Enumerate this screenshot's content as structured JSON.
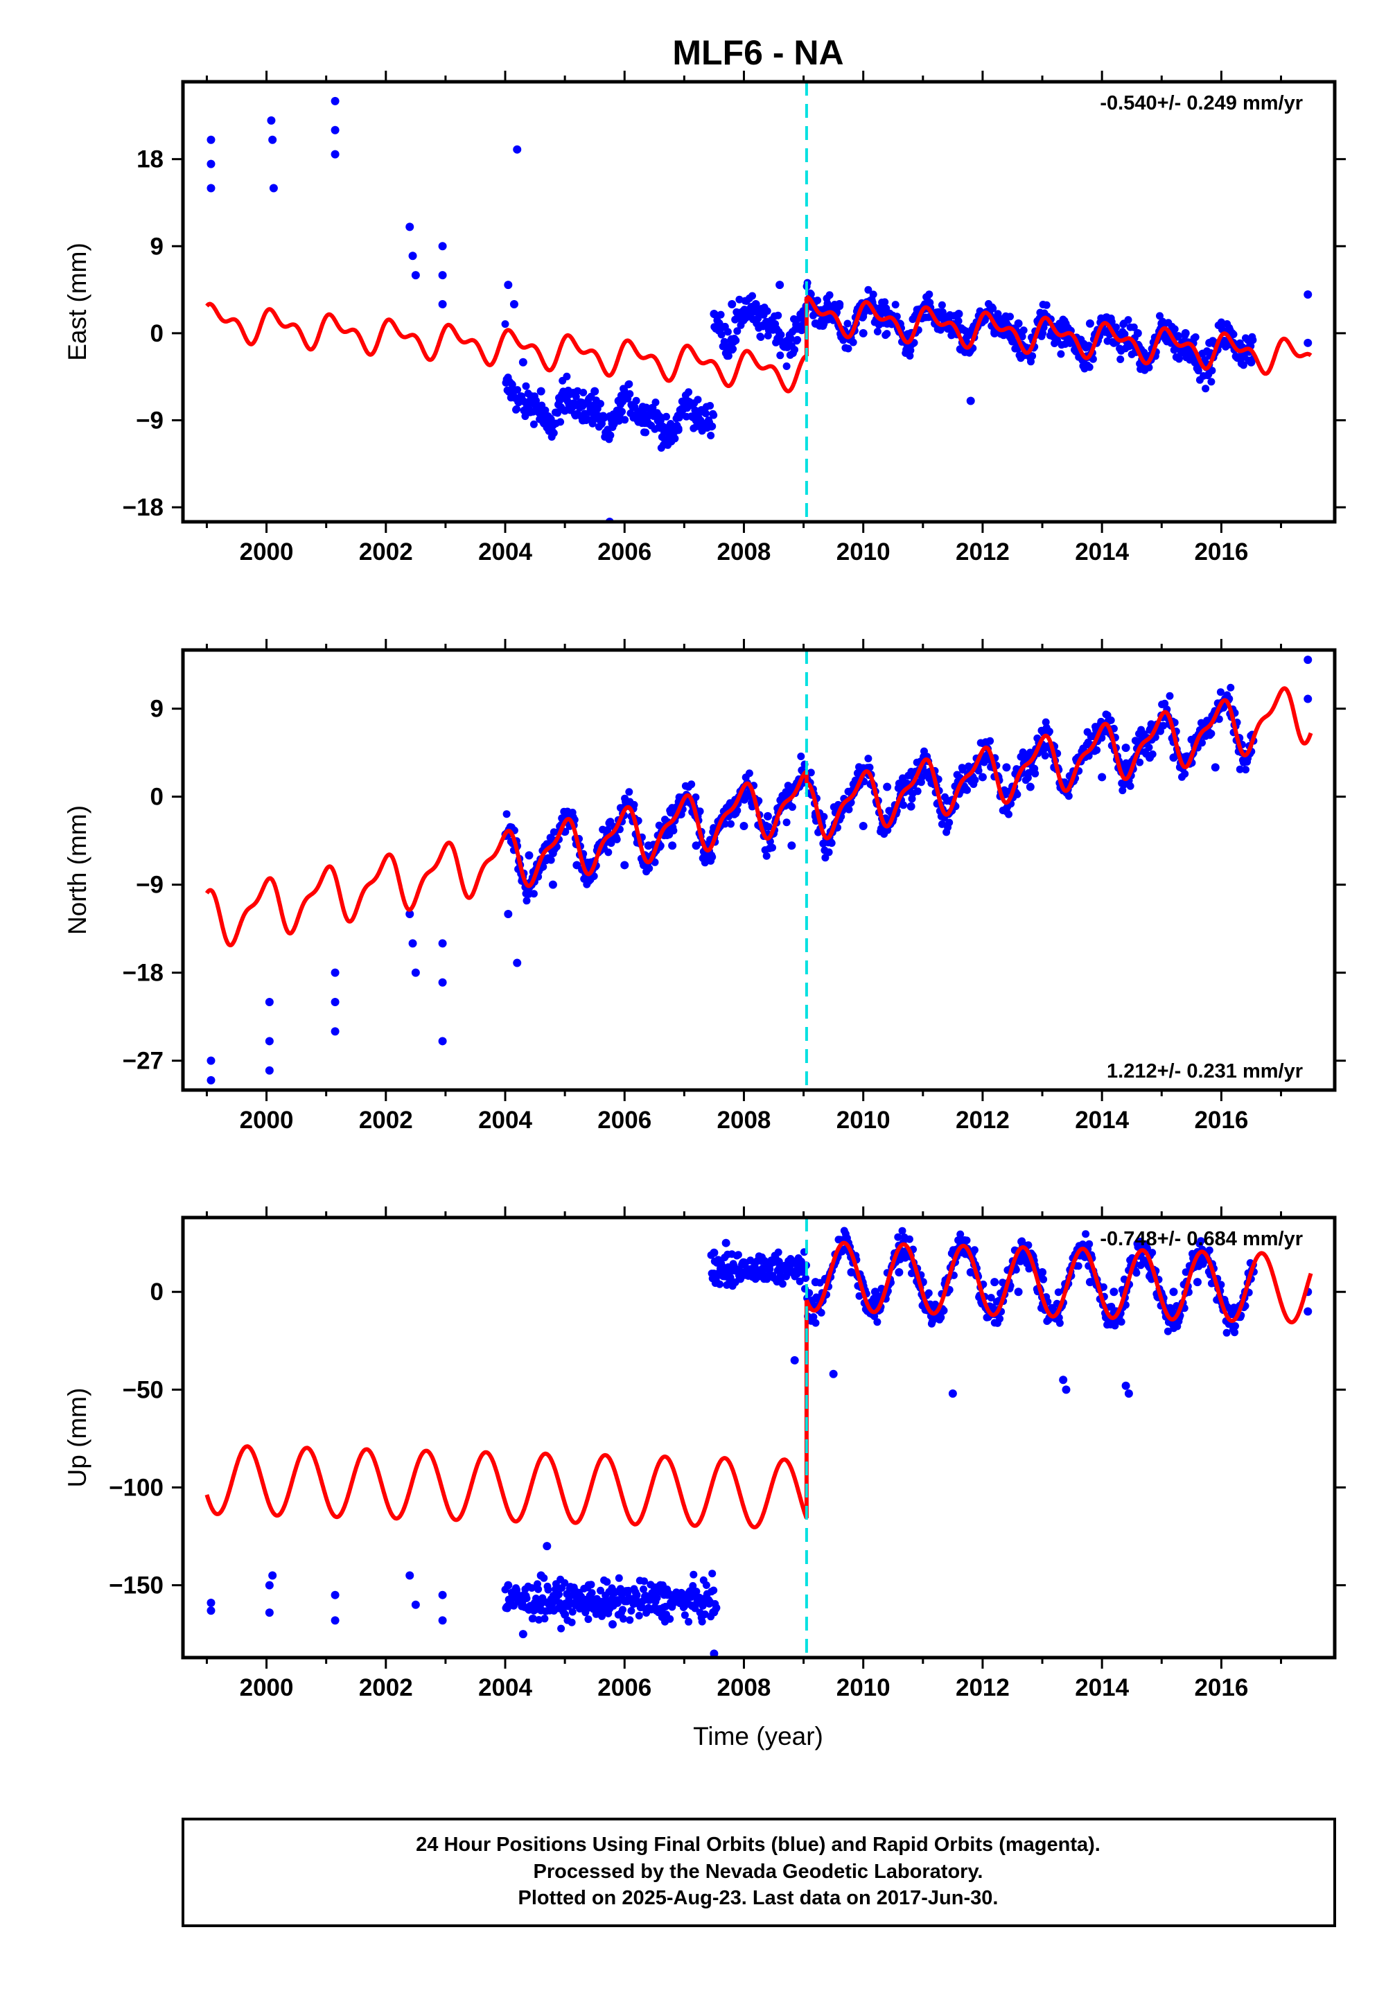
{
  "title": "MLF6 - NA",
  "xlabel": "Time (year)",
  "footer": {
    "line1": "24 Hour Positions Using Final Orbits (blue) and Rapid Orbits (magenta).",
    "line2": "Processed by the Nevada Geodetic Laboratory.",
    "line3": "Plotted on 2025-Aug-23. Last data on 2017-Jun-30."
  },
  "colors": {
    "final_orbits": "#0000ff",
    "model_fit": "#ff0000",
    "equipment_change": "#00e0e0"
  },
  "chart_data": [
    {
      "type": "scatter",
      "name": "east",
      "ylabel": "East (mm)",
      "rate_text": "-0.540+/- 0.249 mm/yr",
      "rate_position": "top-right",
      "xlim": [
        1998.6,
        2017.9
      ],
      "ylim": [
        -19.5,
        26
      ],
      "x_ticks": [
        2000,
        2002,
        2004,
        2006,
        2008,
        2010,
        2012,
        2014,
        2016
      ],
      "y_ticks": [
        -18,
        -9,
        0,
        9,
        18
      ],
      "step_epoch": 2009.05,
      "points": [
        [
          1999.07,
          20
        ],
        [
          1999.07,
          17.5
        ],
        [
          1999.07,
          15
        ],
        [
          2000.08,
          22
        ],
        [
          2000.1,
          20
        ],
        [
          2000.12,
          15
        ],
        [
          2001.15,
          24
        ],
        [
          2001.15,
          21
        ],
        [
          2001.15,
          18.5
        ],
        [
          2002.4,
          11
        ],
        [
          2002.45,
          8
        ],
        [
          2002.5,
          6
        ],
        [
          2002.95,
          9
        ],
        [
          2002.95,
          6
        ],
        [
          2002.95,
          3
        ],
        [
          2004.2,
          19
        ],
        [
          2004.05,
          5
        ],
        [
          2004.15,
          3
        ],
        [
          2004.3,
          -3
        ],
        [
          2004.6,
          -6
        ],
        [
          2005.0,
          -8
        ],
        [
          2005.3,
          -9
        ],
        [
          2005.5,
          -6
        ],
        [
          2005.75,
          -19.5
        ],
        [
          2005.9,
          -7
        ],
        [
          2006.3,
          -8
        ],
        [
          2006.6,
          -9
        ],
        [
          2006.9,
          -10
        ],
        [
          2007.2,
          -9
        ],
        [
          2007.5,
          2
        ],
        [
          2007.8,
          3
        ],
        [
          2008.2,
          3
        ],
        [
          2008.6,
          5
        ],
        [
          2009.2,
          1
        ],
        [
          2009.6,
          3
        ],
        [
          2010.0,
          0
        ],
        [
          2010.4,
          1
        ],
        [
          2010.8,
          0
        ],
        [
          2011.2,
          1
        ],
        [
          2011.6,
          2
        ],
        [
          2011.8,
          -7
        ],
        [
          2012.2,
          0
        ],
        [
          2012.6,
          1
        ],
        [
          2013.0,
          0
        ],
        [
          2013.4,
          0
        ],
        [
          2013.8,
          1
        ],
        [
          2014.2,
          -1
        ],
        [
          2014.6,
          0
        ],
        [
          2015.0,
          1
        ],
        [
          2015.4,
          0
        ],
        [
          2015.8,
          -1
        ],
        [
          2016.2,
          -1
        ],
        [
          2016.5,
          -3
        ],
        [
          2017.45,
          4
        ],
        [
          2017.45,
          -1
        ]
      ],
      "model": {
        "segments": [
          {
            "from": 1999.0,
            "to": 2009.05,
            "base_at_start": 1.3,
            "slope": -0.54,
            "amp_annual": 1.3,
            "amp_semiannual": 0.9,
            "phase_annual": 0.5,
            "phase_semiannual": 1.4
          },
          {
            "from": 2009.05,
            "to": 2017.5,
            "base_at_start": 2.0,
            "slope": -0.54,
            "amp_annual": 1.3,
            "amp_semiannual": 0.9,
            "phase_annual": 0.5,
            "phase_semiannual": 1.4
          }
        ]
      }
    },
    {
      "type": "scatter",
      "name": "north",
      "ylabel": "North (mm)",
      "rate_text": "1.212+/- 0.231 mm/yr",
      "rate_position": "bottom-right",
      "xlim": [
        1998.6,
        2017.9
      ],
      "ylim": [
        -30,
        15
      ],
      "x_ticks": [
        2000,
        2002,
        2004,
        2006,
        2008,
        2010,
        2012,
        2014,
        2016
      ],
      "y_ticks": [
        -27,
        -18,
        -9,
        0,
        9
      ],
      "step_epoch": 2009.05,
      "points": [
        [
          1999.07,
          -27
        ],
        [
          1999.07,
          -29
        ],
        [
          2000.05,
          -21
        ],
        [
          2000.05,
          -25
        ],
        [
          2000.05,
          -28
        ],
        [
          2001.15,
          -18
        ],
        [
          2001.15,
          -21
        ],
        [
          2001.15,
          -24
        ],
        [
          2002.4,
          -12
        ],
        [
          2002.45,
          -15
        ],
        [
          2002.5,
          -18
        ],
        [
          2002.95,
          -15
        ],
        [
          2002.95,
          -19
        ],
        [
          2002.95,
          -25
        ],
        [
          2004.05,
          -12
        ],
        [
          2004.2,
          -17
        ],
        [
          2004.4,
          -6
        ],
        [
          2004.8,
          -9
        ],
        [
          2005.2,
          -7
        ],
        [
          2005.6,
          -5
        ],
        [
          2006.0,
          -7
        ],
        [
          2006.4,
          -5
        ],
        [
          2006.8,
          -5
        ],
        [
          2007.2,
          -5
        ],
        [
          2007.6,
          -3
        ],
        [
          2008.0,
          -3
        ],
        [
          2008.4,
          -2
        ],
        [
          2008.8,
          -5
        ],
        [
          2009.2,
          -2
        ],
        [
          2009.6,
          -1
        ],
        [
          2010.0,
          -3
        ],
        [
          2010.4,
          1
        ],
        [
          2010.8,
          -1
        ],
        [
          2011.2,
          2
        ],
        [
          2011.6,
          1
        ],
        [
          2012.0,
          2
        ],
        [
          2012.4,
          3
        ],
        [
          2012.8,
          1
        ],
        [
          2013.2,
          3
        ],
        [
          2013.6,
          4
        ],
        [
          2014.0,
          2
        ],
        [
          2014.4,
          5
        ],
        [
          2014.8,
          4
        ],
        [
          2015.2,
          4
        ],
        [
          2015.6,
          6
        ],
        [
          2015.9,
          3
        ],
        [
          2016.3,
          6
        ],
        [
          2017.45,
          14
        ],
        [
          2017.45,
          10
        ]
      ],
      "model": {
        "segments": [
          {
            "from": 1999.0,
            "to": 2009.05,
            "base_at_start": -12.5,
            "slope": 1.212,
            "amp_annual": 2.5,
            "amp_semiannual": 1.0,
            "phase_annual": 1.8,
            "phase_semiannual": 0.2
          },
          {
            "from": 2009.05,
            "to": 2017.5,
            "base_at_start": -1.5,
            "slope": 1.212,
            "amp_annual": 2.5,
            "amp_semiannual": 1.0,
            "phase_annual": 1.8,
            "phase_semiannual": 0.2
          }
        ]
      }
    },
    {
      "type": "scatter",
      "name": "up",
      "ylabel": "Up (mm)",
      "rate_text": "-0.748+/- 0.684 mm/yr",
      "rate_position": "top-right",
      "xlim": [
        1998.6,
        2017.9
      ],
      "ylim": [
        -187,
        38
      ],
      "x_ticks": [
        2000,
        2002,
        2004,
        2006,
        2008,
        2010,
        2012,
        2014,
        2016
      ],
      "y_ticks": [
        -150,
        -100,
        -50,
        0
      ],
      "step_epoch": 2009.05,
      "points": [
        [
          1999.07,
          -159
        ],
        [
          1999.07,
          -163
        ],
        [
          2000.05,
          -150
        ],
        [
          2000.1,
          -145
        ],
        [
          2000.05,
          -164
        ],
        [
          2001.15,
          -155
        ],
        [
          2001.15,
          -168
        ],
        [
          2002.4,
          -145
        ],
        [
          2002.5,
          -160
        ],
        [
          2002.95,
          -155
        ],
        [
          2002.95,
          -168
        ],
        [
          2004.05,
          -150
        ],
        [
          2004.3,
          -175
        ],
        [
          2004.6,
          -145
        ],
        [
          2004.7,
          -130
        ],
        [
          2005.0,
          -165
        ],
        [
          2005.4,
          -150
        ],
        [
          2005.8,
          -170
        ],
        [
          2006.2,
          -155
        ],
        [
          2006.6,
          -150
        ],
        [
          2007.0,
          -160
        ],
        [
          2007.3,
          -165
        ],
        [
          2007.5,
          -185
        ],
        [
          2007.5,
          20
        ],
        [
          2007.7,
          25
        ],
        [
          2008.0,
          15
        ],
        [
          2008.3,
          10
        ],
        [
          2008.6,
          12
        ],
        [
          2008.85,
          -35
        ],
        [
          2009.2,
          5
        ],
        [
          2009.5,
          -42
        ],
        [
          2009.8,
          10
        ],
        [
          2010.2,
          0
        ],
        [
          2010.6,
          10
        ],
        [
          2011.0,
          5
        ],
        [
          2011.4,
          0
        ],
        [
          2011.5,
          -52
        ],
        [
          2011.8,
          10
        ],
        [
          2012.2,
          5
        ],
        [
          2012.6,
          0
        ],
        [
          2013.0,
          10
        ],
        [
          2013.35,
          -45
        ],
        [
          2013.4,
          -50
        ],
        [
          2013.8,
          5
        ],
        [
          2014.2,
          0
        ],
        [
          2014.4,
          -48
        ],
        [
          2014.45,
          -52
        ],
        [
          2014.8,
          8
        ],
        [
          2015.2,
          0
        ],
        [
          2015.6,
          5
        ],
        [
          2016.0,
          -5
        ],
        [
          2016.4,
          0
        ],
        [
          2017.45,
          -10
        ],
        [
          2017.45,
          0
        ]
      ],
      "model": {
        "segments": [
          {
            "from": 1999.0,
            "to": 2009.05,
            "base_at_start": -96,
            "slope": -0.748,
            "amp_annual": 17.5,
            "amp_semiannual": 0,
            "phase_annual": 3.6,
            "phase_semiannual": 0
          },
          {
            "from": 2009.05,
            "to": 2017.5,
            "base_at_start": 8,
            "slope": -0.748,
            "amp_annual": 17.5,
            "amp_semiannual": 0,
            "phase_annual": 3.6,
            "phase_semiannual": 0
          }
        ]
      }
    }
  ]
}
